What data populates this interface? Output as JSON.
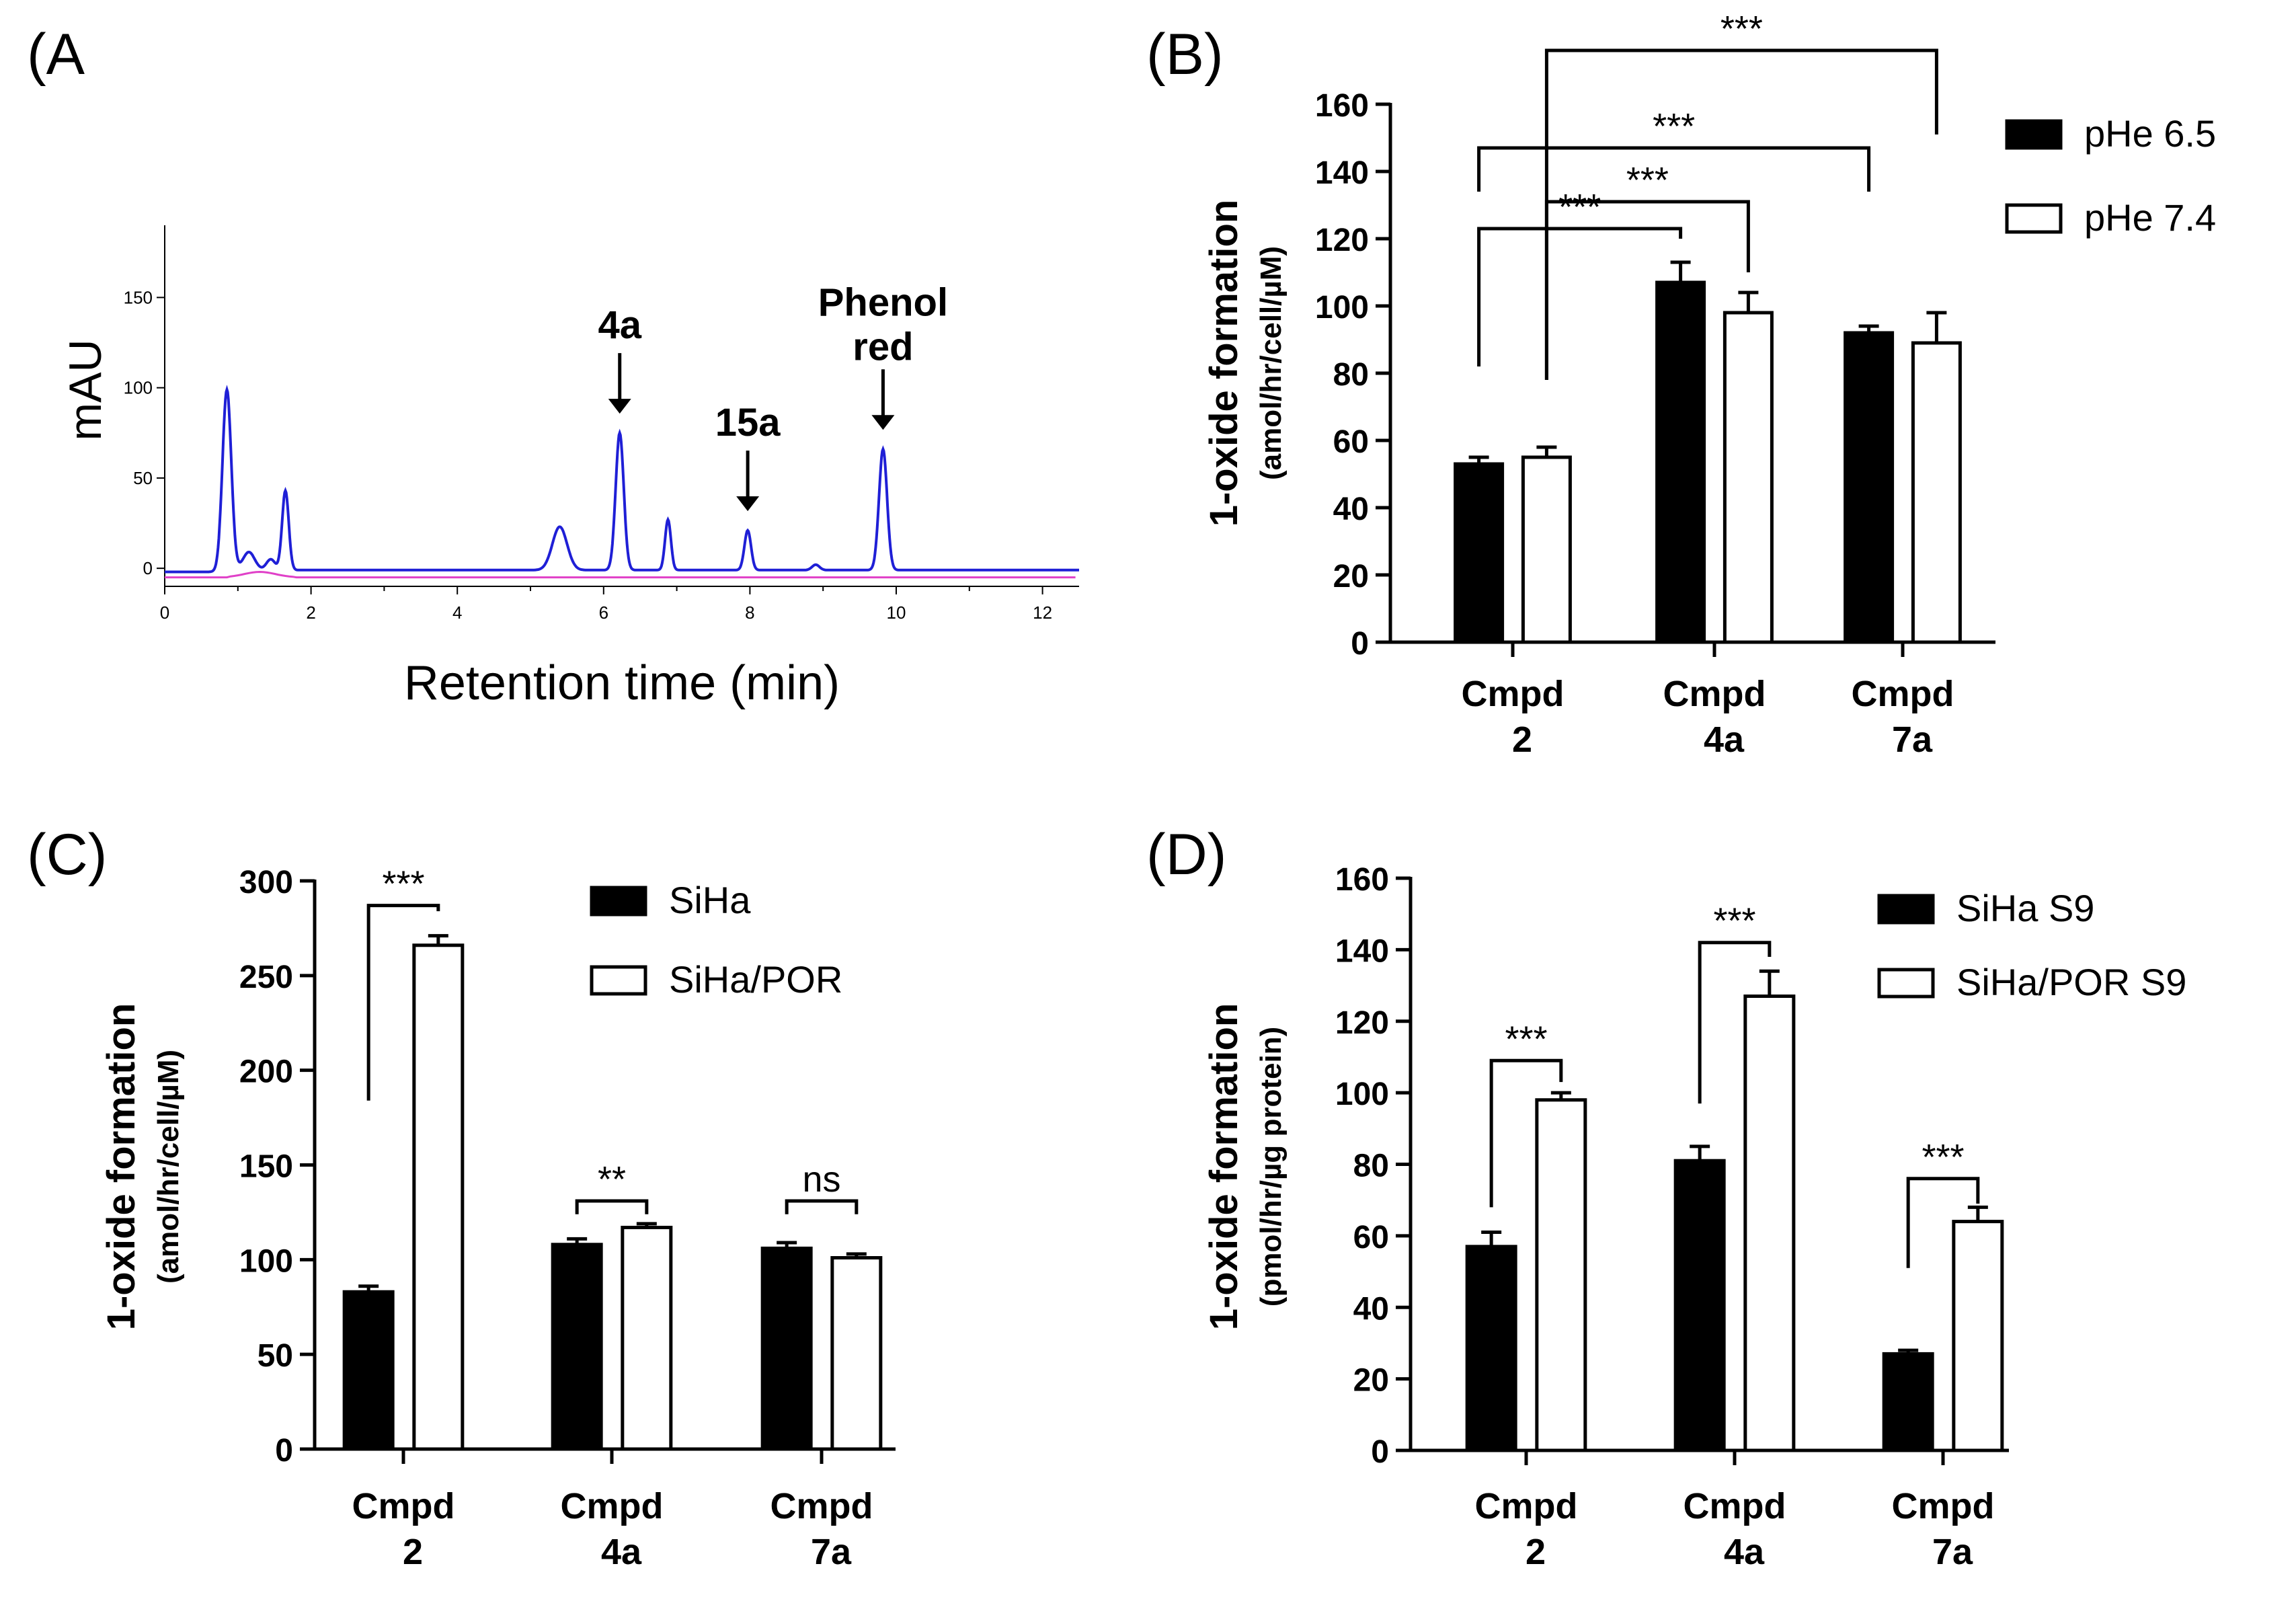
{
  "figure": {
    "panel_labels": [
      "(A",
      "(B)",
      "(C)",
      "(D)"
    ]
  },
  "chart_data": [
    {
      "panel": "A",
      "type": "line",
      "title": "",
      "xlabel": "Retention time (min)",
      "ylabel": "mAU",
      "xlim": [
        0,
        12.5
      ],
      "ylim": [
        -10,
        190
      ],
      "xticks": [
        0,
        2,
        4,
        6,
        8,
        10,
        12
      ],
      "yticks": [
        0,
        50,
        100,
        150
      ],
      "colors": {
        "blue": "#1f1fd6",
        "magenta": "#e040c8"
      },
      "peaks": [
        {
          "x": 0.85,
          "height": 100,
          "width": 0.06
        },
        {
          "x": 1.15,
          "height": 10,
          "width": 0.08
        },
        {
          "x": 1.45,
          "height": 6,
          "width": 0.06
        },
        {
          "x": 1.65,
          "height": 44,
          "width": 0.045
        },
        {
          "x": 5.4,
          "height": 24,
          "width": 0.1
        },
        {
          "x": 6.22,
          "height": 76,
          "width": 0.055
        },
        {
          "x": 6.88,
          "height": 28,
          "width": 0.04
        },
        {
          "x": 7.97,
          "height": 22,
          "width": 0.045
        },
        {
          "x": 8.9,
          "height": 3,
          "width": 0.05
        },
        {
          "x": 9.82,
          "height": 67,
          "width": 0.055
        }
      ],
      "annotations": [
        {
          "text": "4a",
          "x": 6.22,
          "height_label": 76
        },
        {
          "text": "15a",
          "x": 7.97,
          "height_label": 22
        },
        {
          "lines": [
            "Phenol",
            "red"
          ],
          "x": 9.82,
          "height_label": 67
        }
      ]
    },
    {
      "panel": "B",
      "type": "bar",
      "title": "",
      "xlabel": "",
      "ylabel": "1-oxide formation",
      "ylabel2": "(amol/hr/cell/µM)",
      "ylim": [
        0,
        160
      ],
      "yticks": [
        0,
        20,
        40,
        60,
        80,
        100,
        120,
        140,
        160
      ],
      "categories": [
        [
          "Cmpd",
          "2"
        ],
        [
          "Cmpd",
          "4a"
        ],
        [
          "Cmpd",
          "7a"
        ]
      ],
      "series": [
        {
          "name": "pHe 6.5",
          "fill": "#000000",
          "values": [
            53,
            107,
            92
          ],
          "errors": [
            2,
            6,
            2
          ]
        },
        {
          "name": "pHe 7.4",
          "fill": "#ffffff",
          "values": [
            55,
            98,
            89
          ],
          "errors": [
            3,
            6,
            9
          ]
        }
      ],
      "legend": "right",
      "significance": [
        {
          "label": "***",
          "from": [
            0,
            0
          ],
          "to": [
            1,
            0
          ],
          "base_left": 82,
          "base_right": 120,
          "level": 123
        },
        {
          "label": "***",
          "from": [
            0,
            1
          ],
          "to": [
            1,
            1
          ],
          "base_left": 78,
          "base_right": 110,
          "level": 131
        },
        {
          "label": "***",
          "from": [
            0,
            0
          ],
          "to": [
            2,
            0
          ],
          "base_left": 134,
          "base_right": 134,
          "level": 147
        },
        {
          "label": "***",
          "from": [
            0,
            1
          ],
          "to": [
            2,
            1
          ],
          "base_left": 78,
          "base_right": 151,
          "level": 176
        }
      ]
    },
    {
      "panel": "C",
      "type": "bar",
      "title": "",
      "xlabel": "",
      "ylabel": "1-oxide formation",
      "ylabel2": "(amol/hr/cell/µM)",
      "ylim": [
        0,
        300
      ],
      "yticks": [
        0,
        50,
        100,
        150,
        200,
        250,
        300
      ],
      "categories": [
        [
          "Cmpd",
          "2"
        ],
        [
          "Cmpd",
          "4a"
        ],
        [
          "Cmpd",
          "7a"
        ]
      ],
      "series": [
        {
          "name": "SiHa",
          "fill": "#000000",
          "values": [
            83,
            108,
            106
          ],
          "errors": [
            3,
            3,
            3
          ]
        },
        {
          "name": "SiHa/POR",
          "fill": "#ffffff",
          "values": [
            266,
            117,
            101
          ],
          "errors": [
            5,
            2,
            2
          ]
        }
      ],
      "legend": "top-right",
      "significance": [
        {
          "label": "***",
          "group": 0,
          "base_left": 184,
          "base_right": 284,
          "level": 287
        },
        {
          "label": "**",
          "group": 1,
          "base_left": 124,
          "base_right": 124,
          "level": 131
        },
        {
          "label": "ns",
          "group": 2,
          "base_left": 124,
          "base_right": 124,
          "level": 131
        }
      ]
    },
    {
      "panel": "D",
      "type": "bar",
      "title": "",
      "xlabel": "",
      "ylabel": "1-oxide formation",
      "ylabel2": "(pmol/hr/µg protein)",
      "ylim": [
        0,
        160
      ],
      "yticks": [
        0,
        20,
        40,
        60,
        80,
        100,
        120,
        140,
        160
      ],
      "categories": [
        [
          "Cmpd",
          "2"
        ],
        [
          "Cmpd",
          "4a"
        ],
        [
          "Cmpd",
          "7a"
        ]
      ],
      "series": [
        {
          "name": "SiHa S9",
          "fill": "#000000",
          "values": [
            57,
            81,
            27
          ],
          "errors": [
            4,
            4,
            1
          ]
        },
        {
          "name": "SiHa/POR S9",
          "fill": "#ffffff",
          "values": [
            98,
            127,
            64
          ],
          "errors": [
            2,
            7,
            4
          ]
        }
      ],
      "legend": "top-right",
      "significance": [
        {
          "label": "***",
          "group": 0,
          "base_left": 68,
          "base_right": 103,
          "level": 109
        },
        {
          "label": "***",
          "group": 1,
          "base_left": 97,
          "base_right": 138,
          "level": 142
        },
        {
          "label": "***",
          "group": 2,
          "base_left": 51,
          "base_right": 69,
          "level": 76
        }
      ]
    }
  ]
}
